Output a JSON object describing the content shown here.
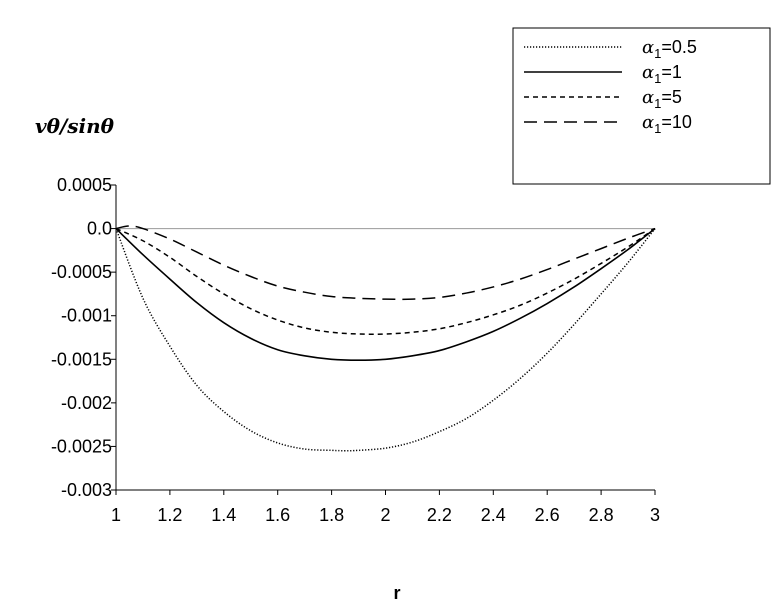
{
  "chart_data": {
    "type": "line",
    "title": "",
    "xlabel": "r",
    "ylabel": "vθ/sinθ",
    "xlim": [
      1,
      3
    ],
    "ylim": [
      -0.003,
      0.0005
    ],
    "xticks": [
      "1",
      "1.2",
      "1.4",
      "1.6",
      "1.8",
      "2",
      "2.2",
      "2.4",
      "2.6",
      "2.8",
      "3"
    ],
    "yticks": [
      "0.0005",
      "0.0",
      "-0.0005",
      "-0.001",
      "-0.0015",
      "-0.002",
      "-0.0025",
      "-0.003"
    ],
    "grid": false,
    "legend_position": "top-right",
    "legend_symbol": "α",
    "legend_subscript": "1",
    "series": [
      {
        "name": "α1=0.5",
        "legend_value": "=0.5",
        "style": "dotted",
        "x": [
          1.0,
          1.1,
          1.2,
          1.3,
          1.4,
          1.5,
          1.6,
          1.7,
          1.8,
          1.85,
          1.9,
          2.0,
          2.1,
          2.2,
          2.3,
          2.4,
          2.5,
          2.6,
          2.7,
          2.8,
          2.9,
          3.0
        ],
        "y": [
          0.0,
          -0.0008,
          -0.00135,
          -0.0018,
          -0.0021,
          -0.00232,
          -0.00246,
          -0.00253,
          -0.002545,
          -0.00255,
          -0.002545,
          -0.00252,
          -0.00245,
          -0.00233,
          -0.00218,
          -0.00197,
          -0.00172,
          -0.00143,
          -0.0011,
          -0.00075,
          -0.00039,
          0.0
        ]
      },
      {
        "name": "α1=1",
        "legend_value": "=1",
        "style": "solid",
        "x": [
          1.0,
          1.1,
          1.2,
          1.3,
          1.4,
          1.5,
          1.6,
          1.7,
          1.8,
          1.9,
          2.0,
          2.1,
          2.2,
          2.3,
          2.4,
          2.5,
          2.6,
          2.7,
          2.8,
          2.9,
          3.0
        ],
        "y": [
          0.0,
          -0.0003,
          -0.00058,
          -0.00085,
          -0.00108,
          -0.00126,
          -0.00139,
          -0.00146,
          -0.0015,
          -0.00151,
          -0.0015,
          -0.00146,
          -0.0014,
          -0.0013,
          -0.00118,
          -0.00103,
          -0.00086,
          -0.00067,
          -0.00046,
          -0.00024,
          0.0
        ]
      },
      {
        "name": "α1=5",
        "legend_value": "=5",
        "style": "dashed",
        "x": [
          1.0,
          1.1,
          1.2,
          1.3,
          1.4,
          1.5,
          1.6,
          1.7,
          1.8,
          1.9,
          2.0,
          2.1,
          2.2,
          2.3,
          2.4,
          2.5,
          2.6,
          2.7,
          2.8,
          2.9,
          3.0
        ],
        "y": [
          0.0,
          -0.00014,
          -0.00033,
          -0.00055,
          -0.00075,
          -0.00092,
          -0.00105,
          -0.00114,
          -0.00119,
          -0.00121,
          -0.00121,
          -0.00119,
          -0.00115,
          -0.00108,
          -0.00099,
          -0.00088,
          -0.00074,
          -0.00058,
          -0.0004,
          -0.00021,
          0.0
        ]
      },
      {
        "name": "α1=10",
        "legend_value": "=10",
        "style": "longdash",
        "x": [
          1.0,
          1.05,
          1.1,
          1.2,
          1.3,
          1.4,
          1.5,
          1.6,
          1.7,
          1.8,
          1.9,
          2.0,
          2.1,
          2.2,
          2.3,
          2.4,
          2.5,
          2.6,
          2.7,
          2.8,
          2.9,
          3.0
        ],
        "y": [
          0.0,
          3e-05,
          0.0,
          -0.00012,
          -0.00027,
          -0.00042,
          -0.00055,
          -0.00066,
          -0.00073,
          -0.00078,
          -0.0008,
          -0.00081,
          -0.00081,
          -0.00079,
          -0.00074,
          -0.00067,
          -0.00058,
          -0.00047,
          -0.00035,
          -0.00023,
          -0.00011,
          0.0
        ]
      }
    ]
  }
}
